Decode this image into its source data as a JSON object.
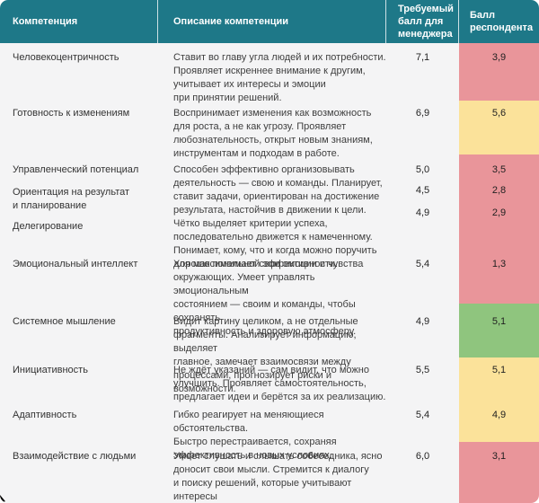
{
  "table": {
    "header": {
      "competency": "Компетенция",
      "description": "Описание компетенции",
      "required": "Требуемый\nбалл для\nменеджера",
      "respondent": "Балл\nреспондента"
    },
    "colors": {
      "header_bg": "#1e7888",
      "red": "#e9959a",
      "yellow": "#fbe29a",
      "green": "#8fc57e"
    },
    "rows": [
      {
        "competency": "Человекоцентричность",
        "description": "Ставит во главу угла людей и их потребности.\nПроявляет искреннее внимание к другим,\nучитывает их интересы и эмоции\nпри принятии решений.",
        "required": "7,1",
        "score": "3,9",
        "score_color": "red"
      },
      {
        "competency": "Готовность к изменениям",
        "description": "Воспринимает изменения как возможность\nдля роста, а не как угрозу. Проявляет\nлюбознательность, открыт новым знаниям,\nинструментам и подходам в работе.",
        "required": "6,9",
        "score": "5,6",
        "score_color": "yellow"
      },
      {
        "description": "Способен эффективно организовывать\nдеятельность — свою и команды. Планирует,\nставит задачи, ориентирован на достижение\nрезультата, настойчив в движении к цели.\nЧётко выделяет критерии успеха,\nпоследовательно движется к намеченному.\nПонимает, кому, что и когда можно поручить\nдля максимальной эффективности.",
        "score_color": "red",
        "items": [
          {
            "competency": "Управленческий потенциал",
            "required": "5,0",
            "score": "3,5"
          },
          {
            "competency": "Ориентация на результат\nи планирование",
            "required": "4,5",
            "score": "2,8"
          },
          {
            "competency": "Делегирование",
            "required": "4,9",
            "score": "2,9"
          }
        ]
      },
      {
        "competency": "Эмоциональный интеллект",
        "description": "Хорошо понимает свои эмоции и чувства\nокружающих. Умеет управлять эмоциональным\nсостоянием — своим и команды, чтобы сохранять\nпродуктивность и здоровую атмосферу.",
        "required": "5,4",
        "score": "1,3",
        "score_color": "red"
      },
      {
        "competency": "Системное мышление",
        "description": "Видит картину целиком, а не отдельные\nфрагменты. Анализирует информацию, выделяет\nглавное, замечает взаимосвязи между\nпроцессами, прогнозирует риски и возможности.",
        "required": "4,9",
        "score": "5,1",
        "score_color": "green"
      },
      {
        "competency": "Инициативность",
        "description": "Не ждёт указаний — сам видит, что можно\nулучшить. Проявляет самостоятельность,\nпредлагает идеи и берётся за их реализацию.",
        "required": "5,5",
        "score": "5,1",
        "score_color": "yellow"
      },
      {
        "competency": "Адаптивность",
        "description": "Гибко реагирует на меняющиеся обстоятельства.\nБыстро перестраивается, сохраняя\nэффективность в новых условиях.",
        "required": "5,4",
        "score": "4,9",
        "score_color": "yellow"
      },
      {
        "competency": "Взаимодействие с людьми",
        "description": "Умеет слушать и слышать собеседника, ясно\nдоносит свои мысли. Стремится к диалогу\nи поиску решений, которые учитывают интересы\nобеих сторон.",
        "required": "6,0",
        "score": "3,1",
        "score_color": "red"
      }
    ]
  }
}
